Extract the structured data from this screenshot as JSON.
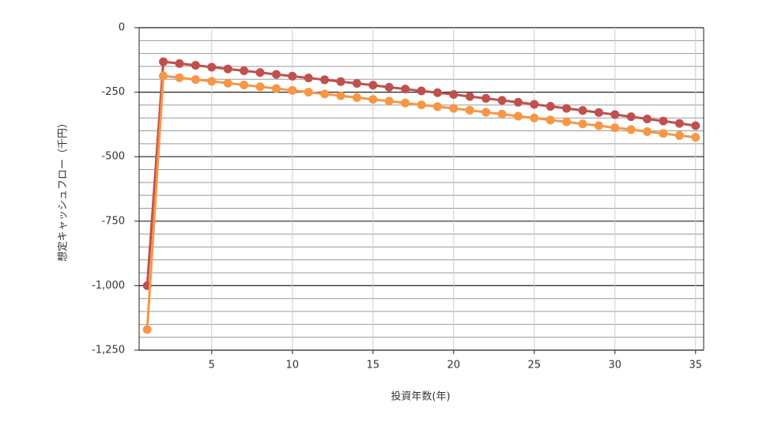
{
  "chart_data": {
    "type": "line",
    "x_label": "投資年数(年)",
    "y_label": "想定キャッシュフロー（千円）",
    "x": [
      1,
      2,
      3,
      4,
      5,
      6,
      7,
      8,
      9,
      10,
      11,
      12,
      13,
      14,
      15,
      16,
      17,
      18,
      19,
      20,
      21,
      22,
      23,
      24,
      25,
      26,
      27,
      28,
      29,
      30,
      31,
      32,
      33,
      34,
      35
    ],
    "series": [
      {
        "color": "#c0504d",
        "values": [
          -1000,
          -132,
          -139,
          -146,
          -153,
          -160,
          -167,
          -174,
          -181,
          -188,
          -195,
          -202,
          -209,
          -216,
          -223,
          -231,
          -238,
          -245,
          -252,
          -259,
          -267,
          -274,
          -282,
          -289,
          -297,
          -305,
          -313,
          -321,
          -329,
          -337,
          -345,
          -354,
          -362,
          -371,
          -380
        ]
      },
      {
        "color": "#f79646",
        "values": [
          -1170,
          -187,
          -194,
          -201,
          -208,
          -215,
          -222,
          -229,
          -236,
          -243,
          -250,
          -257,
          -264,
          -271,
          -278,
          -285,
          -292,
          -299,
          -306,
          -313,
          -320,
          -328,
          -335,
          -343,
          -350,
          -358,
          -365,
          -373,
          -380,
          -388,
          -395,
          -403,
          -410,
          -418,
          -425
        ]
      }
    ],
    "xlim": [
      0.5,
      35.5
    ],
    "xticks": [
      5,
      10,
      15,
      20,
      25,
      30,
      35
    ],
    "ylim": [
      -1250,
      0
    ],
    "yticks": [
      {
        "value": -1250,
        "label": "-1,250"
      },
      {
        "value": -1000,
        "label": "-1,000"
      },
      -750,
      -500,
      -250,
      0
    ],
    "grid": true
  }
}
